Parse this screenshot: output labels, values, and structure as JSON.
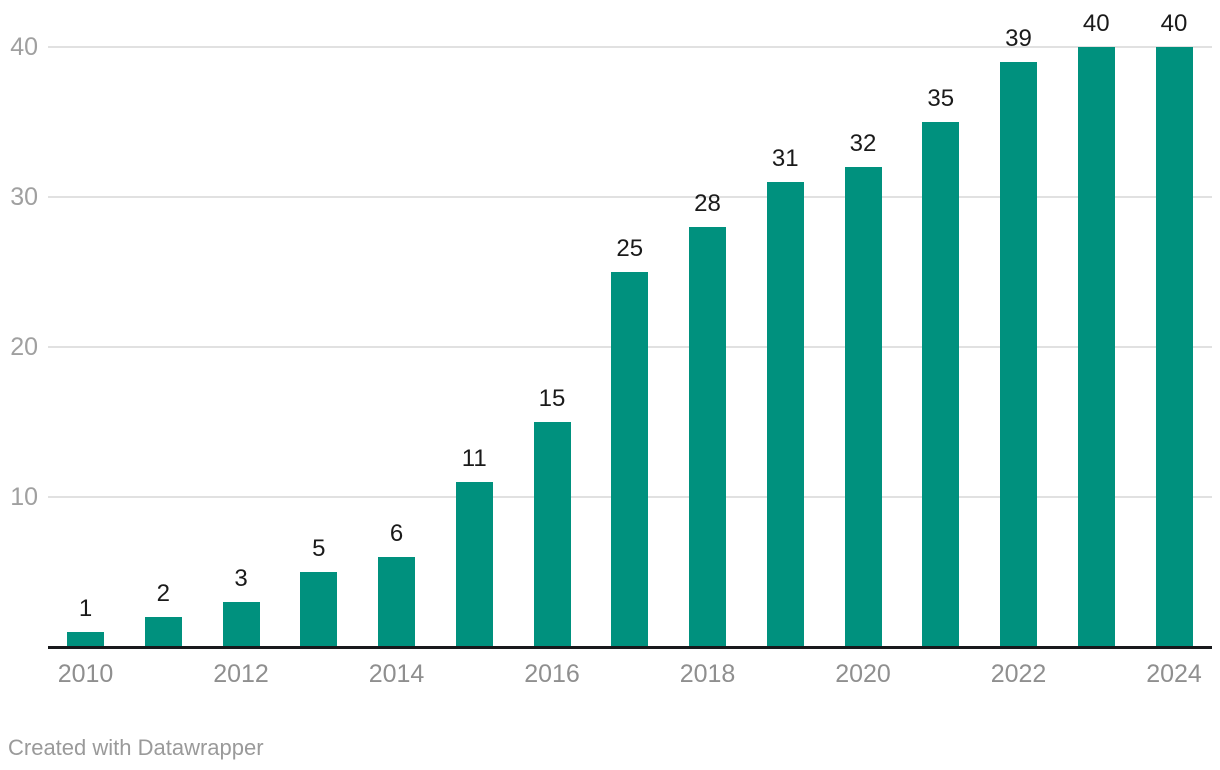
{
  "chart_data": {
    "type": "bar",
    "title": "",
    "categories": [
      "2010",
      "2011",
      "2012",
      "2013",
      "2014",
      "2015",
      "2016",
      "2017",
      "2018",
      "2019",
      "2020",
      "2021",
      "2022",
      "2023",
      "2024"
    ],
    "values": [
      1,
      2,
      3,
      5,
      6,
      11,
      15,
      25,
      28,
      31,
      32,
      35,
      39,
      40,
      40
    ],
    "xlabel": "",
    "ylabel": "",
    "ylim": [
      0,
      40
    ],
    "yticks": [
      10,
      20,
      30,
      40
    ],
    "xtick_labels": [
      "2010",
      "2012",
      "2014",
      "2016",
      "2018",
      "2020",
      "2022",
      "2024"
    ],
    "grid": "horizontal",
    "legend": "none",
    "value_labels": true,
    "bar_color": "#00917E"
  },
  "colors": {
    "background": "#ffffff",
    "bar": "#00917E",
    "gridline": "#e1e1e1",
    "axis_line": "#18191c",
    "value_label": "#1a1a1a",
    "y_tick_label": "#a0a0a0",
    "x_tick_label": "#8f8f8f",
    "attribution": "#9a9a9a"
  },
  "footer": {
    "attribution": "Created with Datawrapper"
  }
}
